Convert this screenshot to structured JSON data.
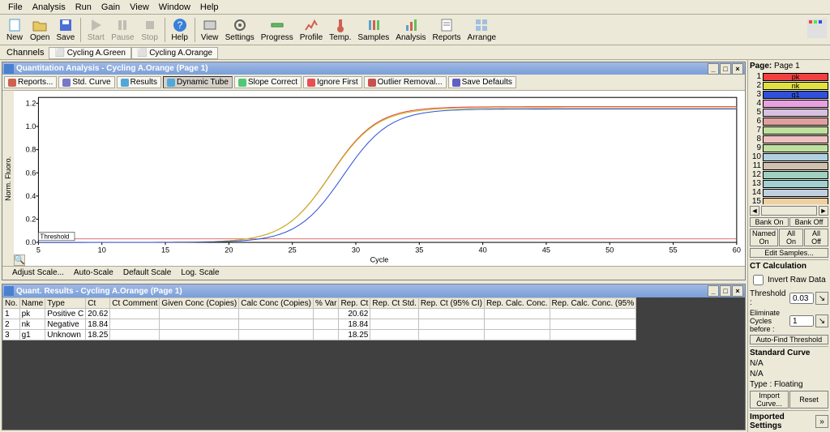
{
  "menu": [
    "File",
    "Analysis",
    "Run",
    "Gain",
    "View",
    "Window",
    "Help"
  ],
  "toolbar": [
    {
      "name": "new",
      "label": "New",
      "color": "#4a9fd8"
    },
    {
      "name": "open",
      "label": "Open",
      "color": "#e8c862"
    },
    {
      "name": "save",
      "label": "Save",
      "color": "#4a6fd8"
    },
    {
      "sep": true
    },
    {
      "name": "start",
      "label": "Start",
      "disabled": true
    },
    {
      "name": "pause",
      "label": "Pause",
      "disabled": true
    },
    {
      "name": "stop",
      "label": "Stop",
      "disabled": true
    },
    {
      "sep": true
    },
    {
      "name": "help",
      "label": "Help",
      "color": "#3a7fd8"
    },
    {
      "sep": true
    },
    {
      "name": "view",
      "label": "View"
    },
    {
      "name": "settings",
      "label": "Settings"
    },
    {
      "name": "progress",
      "label": "Progress"
    },
    {
      "name": "profile",
      "label": "Profile"
    },
    {
      "name": "temp",
      "label": "Temp."
    },
    {
      "name": "samples",
      "label": "Samples"
    },
    {
      "name": "analysis",
      "label": "Analysis"
    },
    {
      "name": "reports",
      "label": "Reports"
    },
    {
      "name": "arrange",
      "label": "Arrange"
    }
  ],
  "channels": {
    "label": "Channels",
    "items": [
      "Cycling A.Green",
      "Cycling A.Orange"
    ]
  },
  "quant_win": {
    "title": "Quantitation Analysis - Cycling A.Orange (Page 1)",
    "buttons": [
      {
        "name": "reports",
        "label": "Reports...",
        "dot": "#d06050"
      },
      {
        "name": "stdcurve",
        "label": "Std. Curve",
        "dot": "#7878c8"
      },
      {
        "name": "results",
        "label": "Results",
        "dot": "#50a8d8"
      },
      {
        "name": "dyntube",
        "label": "Dynamic Tube",
        "dot": "#50a8d8",
        "active": true
      },
      {
        "name": "slope",
        "label": "Slope Correct",
        "dot": "#50c878"
      },
      {
        "name": "ignore",
        "label": "Ignore First",
        "dot": "#e85050"
      },
      {
        "name": "outlier",
        "label": "Outlier Removal...",
        "dot": "#c85050"
      },
      {
        "name": "savedef",
        "label": "Save Defaults",
        "dot": "#6060c0"
      }
    ],
    "ylabel": "Norm. Fluoro.",
    "chart": {
      "xlim": [
        5,
        60
      ],
      "ylim": [
        0,
        1.25
      ],
      "yticks": [
        0.0,
        0.2,
        0.4,
        0.6,
        0.8,
        1.0,
        1.2
      ],
      "xticks": [
        5,
        10,
        15,
        20,
        25,
        30,
        35,
        40,
        45,
        50,
        55,
        60
      ],
      "xlabel": "Cycle",
      "threshold_label": "Threshold",
      "threshold": 0.03,
      "series": [
        {
          "name": "pk",
          "color": "#e84040",
          "mid": 28,
          "top": 1.17
        },
        {
          "name": "nk",
          "color": "#c0c020",
          "mid": 28,
          "top": 1.16
        },
        {
          "name": "g1",
          "color": "#3050d8",
          "mid": 29,
          "top": 1.15
        }
      ],
      "background": "#ffffff",
      "axis_color": "#000000",
      "grid_color": "#e8e8e8"
    },
    "scale_buttons": [
      "Adjust Scale...",
      "Auto-Scale",
      "Default Scale",
      "Log. Scale"
    ]
  },
  "results_win": {
    "title": "Quant. Results - Cycling A.Orange (Page 1)",
    "columns": [
      "No.",
      "Name",
      "Type",
      "Ct",
      "Ct Comment",
      "Given Conc (Copies)",
      "Calc Conc (Copies)",
      "% Var",
      "Rep. Ct",
      "Rep. Ct Std.",
      "Rep. Ct (95% CI)",
      "Rep. Calc. Conc.",
      "Rep. Calc. Conc. (95%"
    ],
    "rows": [
      [
        "1",
        "pk",
        "Positive C",
        "20.62",
        "",
        "",
        "",
        "",
        "20.62",
        "",
        "",
        "",
        ""
      ],
      [
        "2",
        "nk",
        "Negative",
        "18.84",
        "",
        "",
        "",
        "",
        "18.84",
        "",
        "",
        "",
        ""
      ],
      [
        "3",
        "g1",
        "Unknown",
        "18.25",
        "",
        "",
        "",
        "",
        "18.25",
        "",
        "",
        "",
        ""
      ]
    ]
  },
  "right": {
    "page_label": "Page:",
    "page_value": "Page 1",
    "swatches": [
      {
        "n": 1,
        "label": "pk",
        "color": "#f04040"
      },
      {
        "n": 2,
        "label": "nk",
        "color": "#e0e040"
      },
      {
        "n": 3,
        "label": "g1",
        "color": "#3050d8"
      },
      {
        "n": 4,
        "label": "",
        "color": "#e8a0e0"
      },
      {
        "n": 5,
        "label": "",
        "color": "#d8c0e0"
      },
      {
        "n": 6,
        "label": "",
        "color": "#e0a0a0"
      },
      {
        "n": 7,
        "label": "",
        "color": "#c0e0a0"
      },
      {
        "n": 8,
        "label": "",
        "color": "#f0c0c0"
      },
      {
        "n": 9,
        "label": "",
        "color": "#c0e0a0"
      },
      {
        "n": 10,
        "label": "",
        "color": "#b0d0e0"
      },
      {
        "n": 11,
        "label": "",
        "color": "#d0c0b0"
      },
      {
        "n": 12,
        "label": "",
        "color": "#a0d0c0"
      },
      {
        "n": 13,
        "label": "",
        "color": "#a0d0d0"
      },
      {
        "n": 14,
        "label": "",
        "color": "#c0d0e0"
      },
      {
        "n": 15,
        "label": "",
        "color": "#f0d0a0"
      },
      {
        "n": 16,
        "label": "",
        "color": "#a0e0c0"
      }
    ],
    "bank_on": "Bank On",
    "bank_off": "Bank Off",
    "named_on": "Named On",
    "all_on": "All On",
    "all_off": "All Off",
    "edit_samples": "Edit Samples...",
    "ct_calc": "CT Calculation",
    "invert": "Invert Raw Data",
    "threshold_lbl": "Threshold :",
    "threshold_val": "0.03",
    "elim_lbl": "Eliminate Cycles before :",
    "elim_val": "1",
    "autofind": "Auto-Find Threshold",
    "std_curve": "Standard Curve",
    "na": "N/A",
    "type": "Type : Floating",
    "import": "Import Curve...",
    "reset": "Reset",
    "imported": "Imported Settings"
  }
}
